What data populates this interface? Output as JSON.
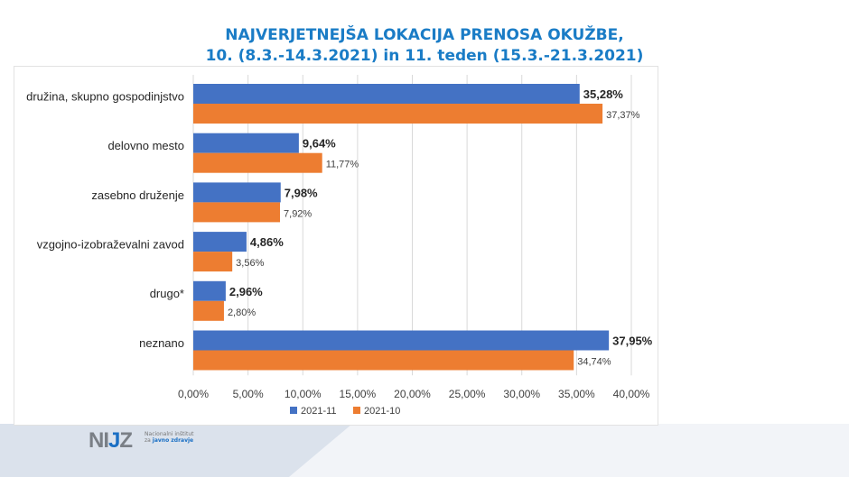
{
  "title_line1": "NAJVERJETNEJŠA LOKACIJA PRENOSA OKUŽBE,",
  "title_line2": "10. (8.3.-14.3.2021) in 11. teden (15.3.-21.3.2021)",
  "logo": {
    "mark": "NIJZ",
    "line1": "Nacionalni inštitut",
    "line2_prefix": "za",
    "line2_bold": "javno zdravje"
  },
  "chart_data": {
    "type": "bar",
    "orientation": "horizontal",
    "categories": [
      "družina, skupno gospodinjstvo",
      "delovno mesto",
      "zasebno druženje",
      "vzgojno-izobraževalni zavod",
      "drugo*",
      "neznano"
    ],
    "series": [
      {
        "name": "2021-11",
        "color": "#4472c4",
        "values": [
          35.28,
          9.64,
          7.98,
          4.86,
          2.96,
          37.95
        ],
        "labels": [
          "35,28%",
          "9,64%",
          "7,98%",
          "4,86%",
          "2,96%",
          "37,95%"
        ]
      },
      {
        "name": "2021-10",
        "color": "#ed7d31",
        "values": [
          37.37,
          11.77,
          7.92,
          3.56,
          2.8,
          34.74
        ],
        "labels": [
          "37,37%",
          "11,77%",
          "7,92%",
          "3,56%",
          "2,80%",
          "34,74%"
        ]
      }
    ],
    "xlim": [
      0,
      40
    ],
    "xticks": [
      "0,00%",
      "5,00%",
      "10,00%",
      "15,00%",
      "20,00%",
      "25,00%",
      "30,00%",
      "35,00%",
      "40,00%"
    ],
    "grid": true,
    "legend": "bottom"
  }
}
